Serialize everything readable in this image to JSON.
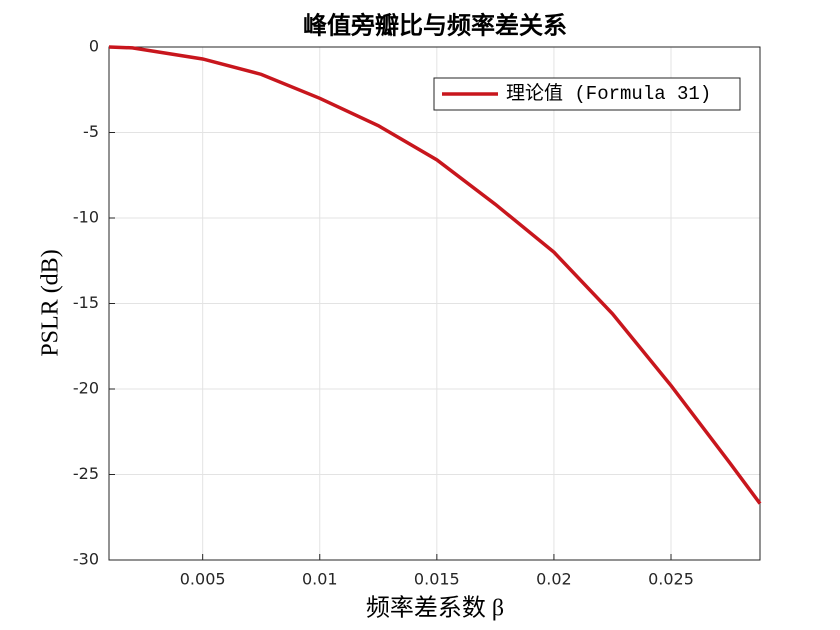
{
  "chart_data": {
    "type": "line",
    "title": "峰值旁瓣比与频率差关系",
    "x_label": "频率差系数 β",
    "y_label": "PSLR (dB)",
    "x": [
      0.001,
      0.002,
      0.005,
      0.0075,
      0.01,
      0.0125,
      0.015,
      0.0175,
      0.02,
      0.0225,
      0.025,
      0.0275,
      0.0288
    ],
    "series": [
      {
        "name": "理论值 (Formula 31)",
        "color": "#c8161d",
        "values": [
          0,
          -0.05,
          -0.7,
          -1.6,
          -3.0,
          -4.6,
          -6.6,
          -9.2,
          -12,
          -15.6,
          -19.8,
          -24.3,
          -26.7
        ]
      }
    ],
    "xlim": [
      0.001,
      0.0288
    ],
    "xticks": [
      0.005,
      0.01,
      0.015,
      0.02,
      0.025
    ],
    "ylim": [
      -30,
      0
    ],
    "yticks": [
      -30,
      -25,
      -20,
      -15,
      -10,
      -5,
      0
    ],
    "grid": true,
    "legend": "northeast"
  }
}
